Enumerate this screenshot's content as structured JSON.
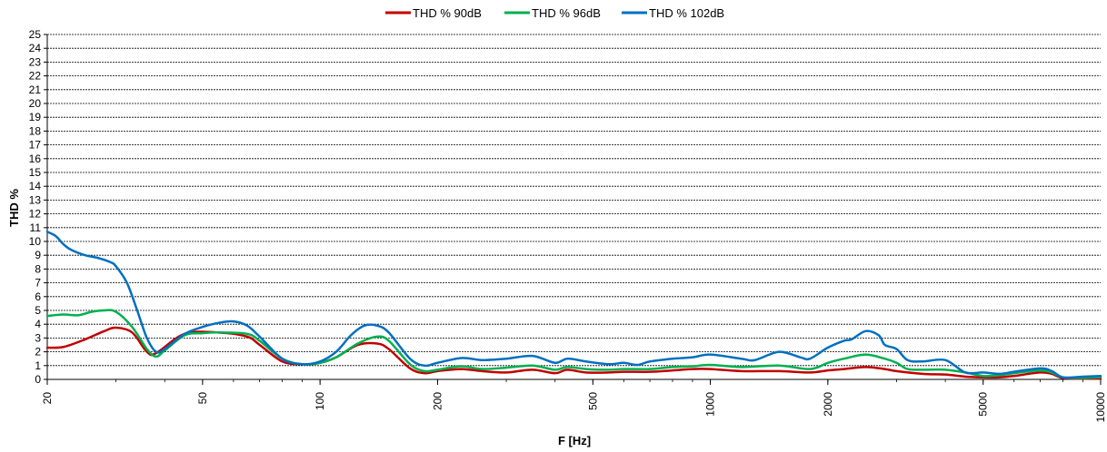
{
  "chart_data": {
    "type": "line",
    "title": "",
    "xlabel": "F [Hz]",
    "ylabel": "THD %",
    "x_scale": "log",
    "xlim": [
      20,
      10000
    ],
    "ylim": [
      0,
      25
    ],
    "x_ticks": [
      "20",
      "50",
      "100",
      "200",
      "500",
      "1000",
      "2000",
      "5000",
      "10000"
    ],
    "y_ticks": [
      "0",
      "1",
      "2",
      "3",
      "4",
      "5",
      "6",
      "7",
      "8",
      "9",
      "10",
      "11",
      "12",
      "13",
      "14",
      "15",
      "16",
      "17",
      "18",
      "19",
      "20",
      "21",
      "22",
      "23",
      "24",
      "25"
    ],
    "grid": true,
    "legend_position": "top",
    "series": [
      {
        "name": "THD % 90dB",
        "color": "#c00000",
        "points": [
          [
            20,
            2.3
          ],
          [
            22,
            2.35
          ],
          [
            25,
            2.9
          ],
          [
            28,
            3.5
          ],
          [
            30,
            3.75
          ],
          [
            33,
            3.4
          ],
          [
            36,
            2.0
          ],
          [
            38,
            1.9
          ],
          [
            45,
            3.3
          ],
          [
            55,
            3.4
          ],
          [
            65,
            3.1
          ],
          [
            70,
            2.5
          ],
          [
            80,
            1.3
          ],
          [
            90,
            1.1
          ],
          [
            100,
            1.2
          ],
          [
            110,
            1.6
          ],
          [
            125,
            2.5
          ],
          [
            140,
            2.6
          ],
          [
            150,
            2.2
          ],
          [
            170,
            0.8
          ],
          [
            185,
            0.45
          ],
          [
            200,
            0.6
          ],
          [
            230,
            0.75
          ],
          [
            260,
            0.6
          ],
          [
            300,
            0.5
          ],
          [
            350,
            0.7
          ],
          [
            400,
            0.45
          ],
          [
            430,
            0.7
          ],
          [
            480,
            0.5
          ],
          [
            550,
            0.5
          ],
          [
            600,
            0.55
          ],
          [
            700,
            0.55
          ],
          [
            800,
            0.65
          ],
          [
            900,
            0.75
          ],
          [
            1000,
            0.75
          ],
          [
            1200,
            0.6
          ],
          [
            1500,
            0.6
          ],
          [
            1800,
            0.5
          ],
          [
            2000,
            0.65
          ],
          [
            2200,
            0.75
          ],
          [
            2500,
            0.9
          ],
          [
            2800,
            0.75
          ],
          [
            3000,
            0.6
          ],
          [
            3500,
            0.4
          ],
          [
            4000,
            0.35
          ],
          [
            4500,
            0.2
          ],
          [
            5000,
            0.15
          ],
          [
            5500,
            0.15
          ],
          [
            6000,
            0.25
          ],
          [
            7000,
            0.5
          ],
          [
            7500,
            0.4
          ],
          [
            8000,
            0.1
          ],
          [
            9000,
            0.05
          ],
          [
            10000,
            0.05
          ]
        ]
      },
      {
        "name": "THD % 96dB",
        "color": "#00b050",
        "points": [
          [
            20,
            4.6
          ],
          [
            22,
            4.7
          ],
          [
            24,
            4.65
          ],
          [
            26,
            4.9
          ],
          [
            28,
            5.0
          ],
          [
            30,
            4.9
          ],
          [
            33,
            3.8
          ],
          [
            36,
            2.2
          ],
          [
            38,
            1.65
          ],
          [
            40,
            2.1
          ],
          [
            45,
            3.2
          ],
          [
            50,
            3.35
          ],
          [
            55,
            3.4
          ],
          [
            65,
            3.3
          ],
          [
            70,
            2.8
          ],
          [
            80,
            1.5
          ],
          [
            90,
            1.1
          ],
          [
            100,
            1.2
          ],
          [
            110,
            1.6
          ],
          [
            125,
            2.6
          ],
          [
            140,
            3.1
          ],
          [
            150,
            2.8
          ],
          [
            170,
            1.1
          ],
          [
            185,
            0.6
          ],
          [
            200,
            0.7
          ],
          [
            230,
            0.95
          ],
          [
            260,
            0.75
          ],
          [
            300,
            0.85
          ],
          [
            350,
            1.0
          ],
          [
            400,
            0.7
          ],
          [
            430,
            0.9
          ],
          [
            480,
            0.75
          ],
          [
            550,
            0.7
          ],
          [
            600,
            0.75
          ],
          [
            700,
            0.75
          ],
          [
            800,
            0.9
          ],
          [
            900,
            0.95
          ],
          [
            1000,
            1.05
          ],
          [
            1200,
            0.9
          ],
          [
            1500,
            1.0
          ],
          [
            1800,
            0.75
          ],
          [
            2000,
            1.2
          ],
          [
            2200,
            1.5
          ],
          [
            2500,
            1.8
          ],
          [
            2800,
            1.5
          ],
          [
            3000,
            1.2
          ],
          [
            3200,
            0.75
          ],
          [
            3500,
            0.7
          ],
          [
            4000,
            0.7
          ],
          [
            4500,
            0.5
          ],
          [
            5000,
            0.25
          ],
          [
            5500,
            0.3
          ],
          [
            6000,
            0.45
          ],
          [
            7000,
            0.65
          ],
          [
            7500,
            0.5
          ],
          [
            8000,
            0.15
          ],
          [
            9000,
            0.1
          ],
          [
            10000,
            0.15
          ]
        ]
      },
      {
        "name": "THD % 102dB",
        "color": "#0070c0",
        "points": [
          [
            20,
            10.7
          ],
          [
            21,
            10.4
          ],
          [
            22,
            9.8
          ],
          [
            23,
            9.4
          ],
          [
            25,
            9.0
          ],
          [
            27,
            8.8
          ],
          [
            29,
            8.5
          ],
          [
            30,
            8.2
          ],
          [
            32,
            7.0
          ],
          [
            34,
            5.0
          ],
          [
            36,
            3.0
          ],
          [
            38,
            2.0
          ],
          [
            40,
            2.2
          ],
          [
            45,
            3.3
          ],
          [
            50,
            3.8
          ],
          [
            55,
            4.1
          ],
          [
            60,
            4.2
          ],
          [
            65,
            3.9
          ],
          [
            70,
            3.1
          ],
          [
            80,
            1.5
          ],
          [
            90,
            1.1
          ],
          [
            100,
            1.3
          ],
          [
            110,
            2.0
          ],
          [
            120,
            3.2
          ],
          [
            130,
            3.9
          ],
          [
            140,
            3.9
          ],
          [
            150,
            3.4
          ],
          [
            170,
            1.5
          ],
          [
            185,
            1.0
          ],
          [
            200,
            1.2
          ],
          [
            230,
            1.55
          ],
          [
            260,
            1.4
          ],
          [
            300,
            1.5
          ],
          [
            350,
            1.7
          ],
          [
            400,
            1.2
          ],
          [
            430,
            1.5
          ],
          [
            480,
            1.3
          ],
          [
            550,
            1.1
          ],
          [
            600,
            1.2
          ],
          [
            650,
            1.05
          ],
          [
            700,
            1.3
          ],
          [
            800,
            1.5
          ],
          [
            900,
            1.6
          ],
          [
            1000,
            1.8
          ],
          [
            1200,
            1.5
          ],
          [
            1300,
            1.4
          ],
          [
            1500,
            2.0
          ],
          [
            1700,
            1.6
          ],
          [
            1800,
            1.5
          ],
          [
            2000,
            2.3
          ],
          [
            2200,
            2.8
          ],
          [
            2300,
            2.9
          ],
          [
            2500,
            3.5
          ],
          [
            2700,
            3.2
          ],
          [
            2800,
            2.5
          ],
          [
            3000,
            2.2
          ],
          [
            3200,
            1.4
          ],
          [
            3500,
            1.3
          ],
          [
            4000,
            1.4
          ],
          [
            4500,
            0.5
          ],
          [
            5000,
            0.5
          ],
          [
            5500,
            0.4
          ],
          [
            6000,
            0.55
          ],
          [
            7000,
            0.8
          ],
          [
            7500,
            0.6
          ],
          [
            8000,
            0.15
          ],
          [
            9000,
            0.2
          ],
          [
            10000,
            0.25
          ]
        ]
      }
    ]
  }
}
